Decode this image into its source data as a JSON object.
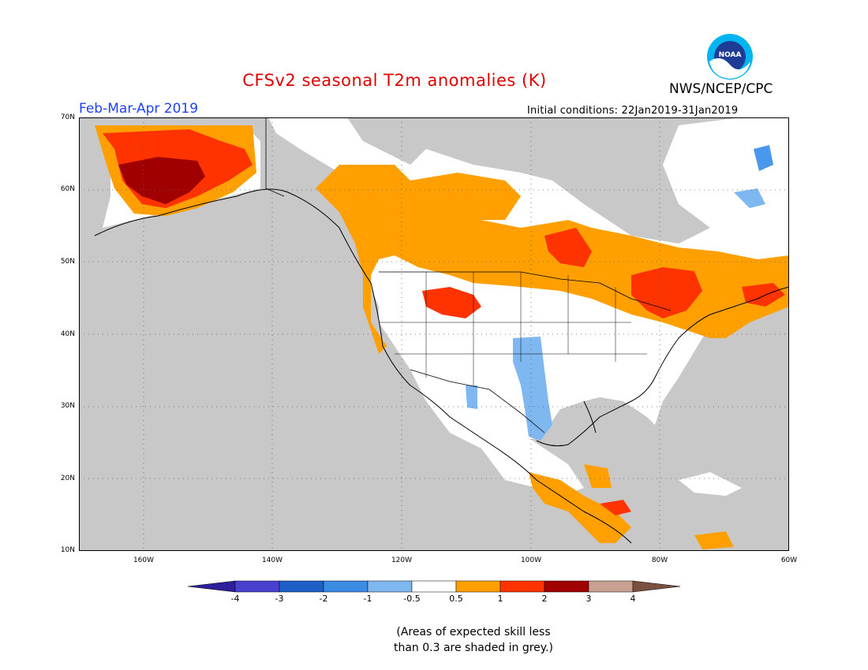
{
  "header": {
    "title": "CFSv2 seasonal T2m anomalies (K)",
    "period": "Feb-Mar-Apr 2019",
    "initial_conditions": "Initial conditions: 22Jan2019-31Jan2019",
    "agency": "NWS/NCEP/CPC",
    "logo_text": "NOAA"
  },
  "map": {
    "lat_labels": [
      "70N",
      "60N",
      "50N",
      "40N",
      "30N",
      "20N",
      "10N"
    ],
    "lon_labels": [
      "160W",
      "140W",
      "120W",
      "100W",
      "80W",
      "60W"
    ],
    "lat_range": [
      10,
      70
    ],
    "lon_range": [
      -170,
      -60
    ],
    "colors": {
      "no_skill_grey": "#c8c8c8",
      "ocean_white": "#ffffff",
      "orange": "#ffa000",
      "red": "#ff3300",
      "dark_red": "#a00000",
      "light_blue": "#7fb8f0",
      "mid_blue": "#4a98ee"
    }
  },
  "colorbar": {
    "labels": [
      "-4",
      "-3",
      "-2",
      "-1",
      "-0.5",
      "0.5",
      "1",
      "2",
      "3",
      "4"
    ],
    "colors": [
      "#2e1f9a",
      "#4a40d0",
      "#1f60c8",
      "#3c8ce6",
      "#7fb8f0",
      "#ffffff",
      "#ffa000",
      "#ff3300",
      "#a00000",
      "#c8a090",
      "#7a5040"
    ]
  },
  "note": "(Areas of expected skill less\nthan 0.3 are shaded in grey.)"
}
